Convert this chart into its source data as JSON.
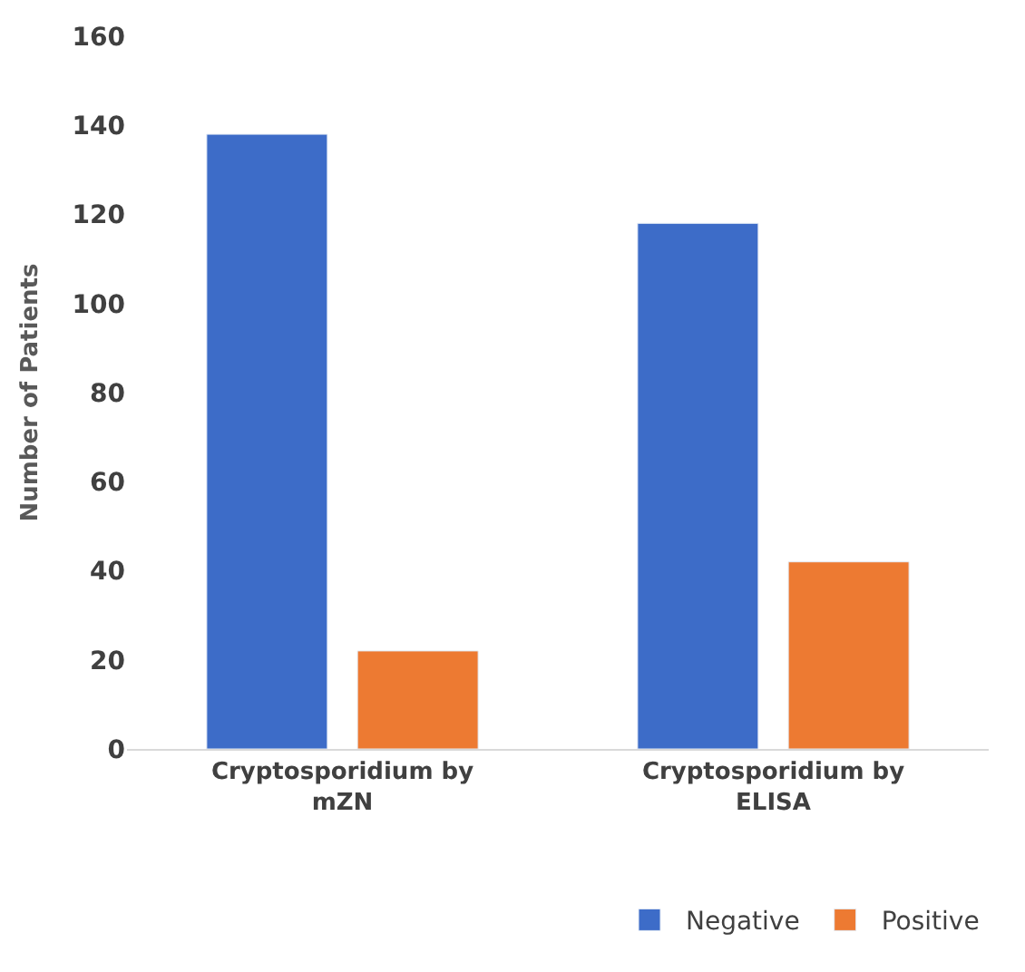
{
  "chart_data": {
    "type": "bar",
    "ylabel": "Number of Patients",
    "categories": [
      "Cryptosporidium by mZN",
      "Cryptosporidium by ELISA"
    ],
    "series": [
      {
        "name": "Negative",
        "color": "#3d6cc8",
        "values": [
          138,
          118
        ]
      },
      {
        "name": "Positive",
        "color": "#ed7a32",
        "values": [
          22,
          42
        ]
      }
    ],
    "ylim": [
      0,
      160
    ],
    "yticks": [
      0,
      20,
      40,
      60,
      80,
      100,
      120,
      140,
      160
    ],
    "grid": false,
    "legend": "bottom right"
  }
}
